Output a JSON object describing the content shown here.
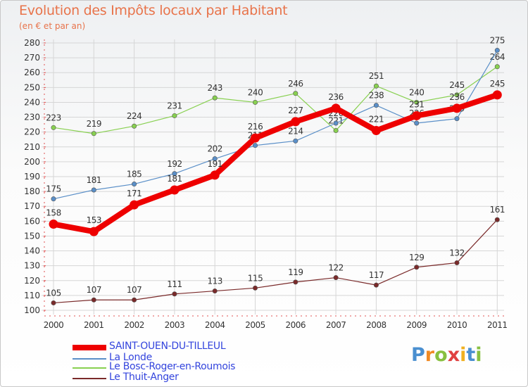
{
  "header": {
    "title": "Evolution des Impôts locaux par Habitant",
    "subtitle": "(en € et par an)"
  },
  "chart_data": {
    "type": "line",
    "title": "Evolution des Impôts locaux par Habitant",
    "subtitle": "(en € et par an)",
    "xlabel": "",
    "ylabel": "",
    "x": [
      "2000",
      "2001",
      "2002",
      "2003",
      "2004",
      "2005",
      "2006",
      "2007",
      "2008",
      "2009",
      "2010",
      "2011"
    ],
    "ylim": [
      100,
      280
    ],
    "y_ticks": [
      100,
      110,
      120,
      130,
      140,
      150,
      160,
      170,
      180,
      190,
      200,
      210,
      220,
      230,
      240,
      250,
      260,
      270,
      280
    ],
    "grid": true,
    "legend_position": "bottom-left",
    "series": [
      {
        "name": "SAINT-OUEN-DU-TILLEUL",
        "color": "#ee0000",
        "values": [
          158,
          153,
          171,
          181,
          191,
          216,
          227,
          236,
          221,
          231,
          236,
          245
        ]
      },
      {
        "name": "La Londe",
        "color": "#5a8fc8",
        "values": [
          175,
          181,
          185,
          192,
          202,
          211,
          214,
          226,
          238,
          226,
          229,
          275
        ]
      },
      {
        "name": "Le Bosc-Roger-en-Roumois",
        "color": "#88d050",
        "values": [
          223,
          219,
          224,
          231,
          243,
          240,
          246,
          221,
          251,
          240,
          245,
          264
        ]
      },
      {
        "name": "Le Thuit-Anger",
        "color": "#7a2a2a",
        "values": [
          105,
          107,
          107,
          111,
          113,
          115,
          119,
          122,
          117,
          129,
          132,
          161
        ]
      }
    ]
  },
  "branding": {
    "logo_text": "Proxiti",
    "logo_colors": [
      "#4a8fd0",
      "#f08a24",
      "#88c040",
      "#e04040",
      "#f0b020",
      "#4a8fd0",
      "#88c040"
    ]
  }
}
